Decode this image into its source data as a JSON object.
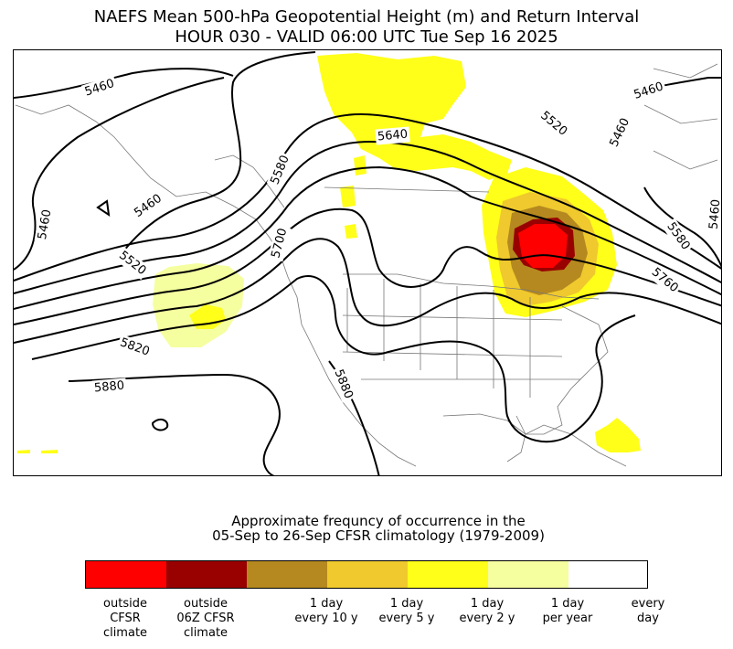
{
  "title": {
    "line1": "NAEFS Mean 500-hPa Geopotential Height (m) and Return Interval",
    "line2": "HOUR 030 - VALID 06:00 UTC Tue Sep 16 2025"
  },
  "contour_labels": [
    "5460",
    "5460",
    "5460",
    "5460",
    "5460",
    "5460",
    "5520",
    "5520",
    "5580",
    "5580",
    "5640",
    "5700",
    "5760",
    "5820",
    "5880",
    "5880"
  ],
  "colorbar": {
    "caption_line1": "Approximate frequncy of occurrence in the",
    "caption_line2": "05-Sep to 26-Sep CFSR climatology (1979-2009)",
    "colors": [
      "#ff0000",
      "#990000",
      "#b5891f",
      "#efc92e",
      "#ffff19",
      "#f5ff9f",
      "#ffffff"
    ],
    "tick_labels": [
      "outside\nCFSR\nclimate",
      "outside\n06Z CFSR\nclimate",
      "1 day\nevery 10 y",
      "1 day\nevery 5 y",
      "1 day\nevery 2 y",
      "1 day\nper year",
      "every\nday"
    ]
  }
}
